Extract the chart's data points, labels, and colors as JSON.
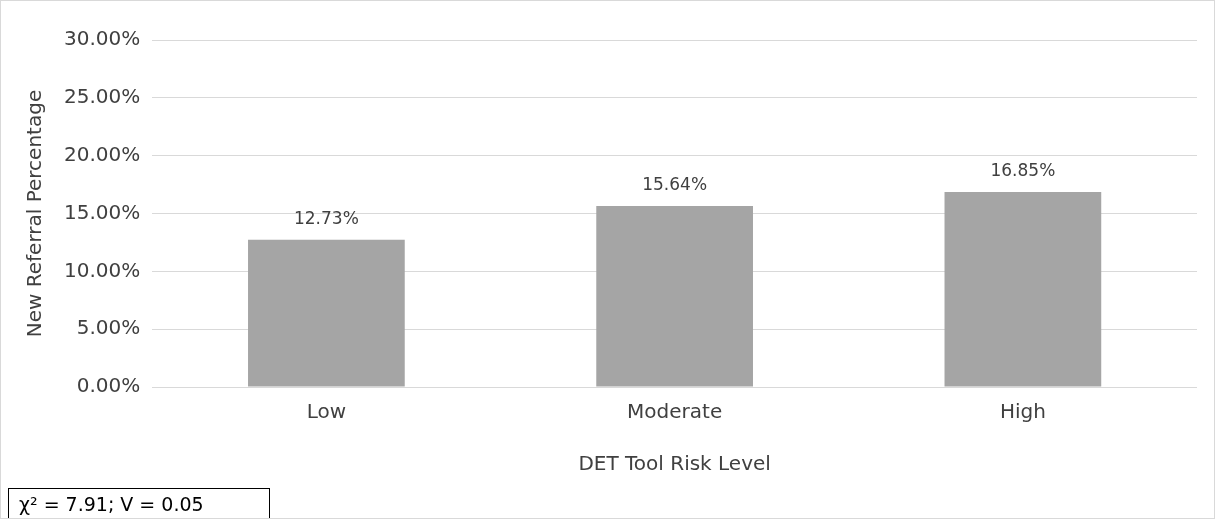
{
  "chart_data": {
    "type": "bar",
    "categories": [
      "Low",
      "Moderate",
      "High"
    ],
    "values": [
      12.73,
      15.64,
      16.85
    ],
    "value_labels": [
      "12.73%",
      "15.64%",
      "16.85%"
    ],
    "color": "#a5a5a5",
    "xlabel": "DET Tool Risk Level",
    "ylabel": "New Referral Percentage",
    "ylim": [
      0,
      30
    ],
    "yticks": [
      {
        "value": 0,
        "label": "0.00%"
      },
      {
        "value": 5,
        "label": "5.00%"
      },
      {
        "value": 10,
        "label": "10.00%"
      },
      {
        "value": 15,
        "label": "15.00%"
      },
      {
        "value": 20,
        "label": "20.00%"
      },
      {
        "value": 25,
        "label": "25.00%"
      },
      {
        "value": 30,
        "label": "30.00%"
      }
    ],
    "grid": "y",
    "legend": false,
    "annotations": [
      "χ² = 7.91; V = 0.05"
    ]
  }
}
